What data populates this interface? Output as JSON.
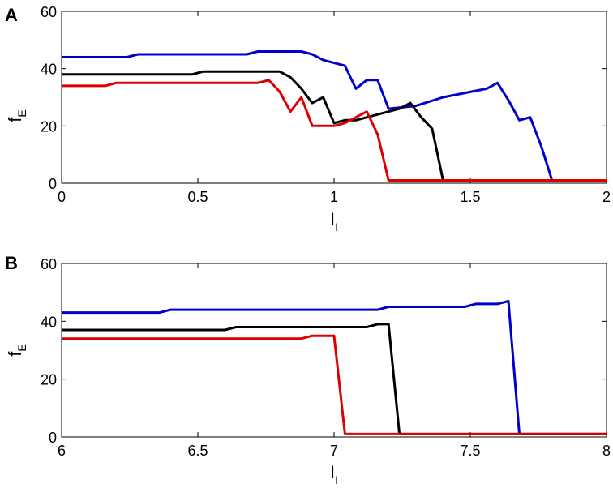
{
  "chart_data": [
    {
      "panel_label": "A",
      "type": "line",
      "xlabel": {
        "main": "I",
        "sub": "I"
      },
      "ylabel": {
        "main": "f",
        "sub": "E"
      },
      "xlim": [
        0,
        2
      ],
      "ylim": [
        0,
        60
      ],
      "xticks": [
        0,
        0.5,
        1,
        1.5,
        2
      ],
      "xtick_labels": [
        "0",
        "0.5",
        "1",
        "1.5",
        "2"
      ],
      "yticks": [
        0,
        20,
        40,
        60
      ],
      "ytick_labels": [
        "0",
        "20",
        "40",
        "60"
      ],
      "grid": false,
      "series": [
        {
          "color": "#0000cc",
          "x": [
            0,
            0.24,
            0.28,
            0.68,
            0.72,
            0.88,
            0.92,
            0.96,
            1.04,
            1.08,
            1.12,
            1.16,
            1.2,
            1.3,
            1.4,
            1.56,
            1.6,
            1.64,
            1.68,
            1.72,
            1.76,
            1.8,
            2.0
          ],
          "y": [
            44,
            44,
            45,
            45,
            46,
            46,
            45,
            43,
            41,
            33,
            36,
            36,
            26,
            27,
            30,
            33,
            35,
            29,
            22,
            23,
            13,
            1,
            1
          ]
        },
        {
          "color": "#000000",
          "x": [
            0,
            0.48,
            0.52,
            0.8,
            0.84,
            0.88,
            0.92,
            0.96,
            1.0,
            1.04,
            1.08,
            1.24,
            1.28,
            1.32,
            1.36,
            1.4,
            2.0
          ],
          "y": [
            38,
            38,
            39,
            39,
            37,
            33,
            28,
            30,
            21,
            22,
            22,
            26,
            28,
            23,
            19,
            1,
            1
          ]
        },
        {
          "color": "#dd0000",
          "x": [
            0,
            0.16,
            0.2,
            0.72,
            0.76,
            0.8,
            0.84,
            0.88,
            0.92,
            1.0,
            1.04,
            1.08,
            1.12,
            1.16,
            1.2,
            2.0
          ],
          "y": [
            34,
            34,
            35,
            35,
            36,
            32,
            25,
            30,
            20,
            20,
            21,
            23,
            25,
            17,
            1,
            1
          ]
        }
      ]
    },
    {
      "panel_label": "B",
      "type": "line",
      "xlabel": {
        "main": "I",
        "sub": "I"
      },
      "ylabel": {
        "main": "f",
        "sub": "E"
      },
      "xlim": [
        6,
        8
      ],
      "ylim": [
        0,
        60
      ],
      "xticks": [
        6,
        6.5,
        7,
        7.5,
        8
      ],
      "xtick_labels": [
        "6",
        "6.5",
        "7",
        "7.5",
        "8"
      ],
      "yticks": [
        0,
        20,
        40,
        60
      ],
      "ytick_labels": [
        "0",
        "20",
        "40",
        "60"
      ],
      "grid": false,
      "series": [
        {
          "color": "#0000cc",
          "x": [
            6,
            6.36,
            6.4,
            7.16,
            7.2,
            7.48,
            7.52,
            7.6,
            7.64,
            7.68,
            8.0
          ],
          "y": [
            43,
            43,
            44,
            44,
            45,
            45,
            46,
            46,
            47,
            1,
            1
          ]
        },
        {
          "color": "#000000",
          "x": [
            6,
            6.6,
            6.64,
            7.12,
            7.16,
            7.2,
            7.24,
            8.0
          ],
          "y": [
            37,
            37,
            38,
            38,
            39,
            39,
            1,
            1
          ]
        },
        {
          "color": "#dd0000",
          "x": [
            6,
            6.88,
            6.92,
            7.0,
            7.04,
            8.0
          ],
          "y": [
            34,
            34,
            35,
            35,
            1,
            1
          ]
        }
      ]
    }
  ]
}
